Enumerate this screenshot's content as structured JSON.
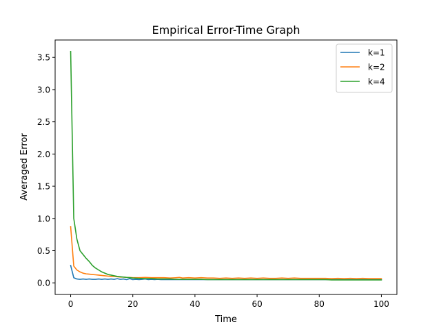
{
  "chart_data": {
    "type": "line",
    "title": "Empirical Error-Time Graph",
    "xlabel": "Time",
    "ylabel": "Averaged Error",
    "xlim": [
      -5,
      105
    ],
    "ylim": [
      -0.18,
      3.77
    ],
    "xticks": [
      0,
      20,
      40,
      60,
      80,
      100
    ],
    "yticks": [
      0.0,
      0.5,
      1.0,
      1.5,
      2.0,
      2.5,
      3.0,
      3.5
    ],
    "grid": false,
    "legend_position": "top-right",
    "series": [
      {
        "name": "k=1",
        "color": "#1f77b4",
        "x": [
          0,
          1,
          2,
          3,
          4,
          5,
          6,
          7,
          8,
          9,
          10,
          11,
          12,
          13,
          14,
          15,
          16,
          17,
          18,
          19,
          20,
          21,
          22,
          23,
          24,
          25,
          26,
          27,
          28,
          29,
          30,
          32,
          34,
          36,
          38,
          40,
          42,
          44,
          46,
          48,
          50,
          52,
          54,
          56,
          58,
          60,
          62,
          64,
          66,
          68,
          70,
          72,
          74,
          76,
          78,
          80,
          82,
          84,
          86,
          88,
          90,
          92,
          94,
          96,
          98,
          100
        ],
        "values": [
          0.27,
          0.08,
          0.06,
          0.055,
          0.06,
          0.055,
          0.06,
          0.055,
          0.055,
          0.06,
          0.055,
          0.06,
          0.055,
          0.06,
          0.055,
          0.065,
          0.055,
          0.06,
          0.05,
          0.065,
          0.05,
          0.055,
          0.05,
          0.055,
          0.06,
          0.05,
          0.055,
          0.05,
          0.055,
          0.05,
          0.05,
          0.05,
          0.05,
          0.05,
          0.05,
          0.05,
          0.05,
          0.05,
          0.05,
          0.05,
          0.05,
          0.05,
          0.05,
          0.05,
          0.05,
          0.05,
          0.05,
          0.05,
          0.05,
          0.05,
          0.05,
          0.05,
          0.05,
          0.05,
          0.05,
          0.05,
          0.05,
          0.05,
          0.05,
          0.05,
          0.05,
          0.05,
          0.05,
          0.05,
          0.05,
          0.05
        ]
      },
      {
        "name": "k=2",
        "color": "#ff7f0e",
        "x": [
          0,
          1,
          2,
          3,
          4,
          5,
          6,
          7,
          8,
          9,
          10,
          11,
          12,
          13,
          14,
          15,
          16,
          17,
          18,
          19,
          20,
          22,
          24,
          26,
          28,
          30,
          32,
          34,
          35,
          36,
          38,
          40,
          42,
          44,
          46,
          48,
          50,
          52,
          54,
          56,
          58,
          60,
          62,
          64,
          66,
          68,
          70,
          72,
          74,
          76,
          78,
          80,
          82,
          84,
          86,
          88,
          90,
          92,
          94,
          96,
          98,
          100
        ],
        "values": [
          0.87,
          0.26,
          0.2,
          0.17,
          0.15,
          0.14,
          0.135,
          0.13,
          0.125,
          0.12,
          0.115,
          0.11,
          0.105,
          0.1,
          0.1,
          0.095,
          0.09,
          0.09,
          0.085,
          0.085,
          0.08,
          0.08,
          0.085,
          0.08,
          0.08,
          0.08,
          0.075,
          0.08,
          0.085,
          0.075,
          0.08,
          0.075,
          0.08,
          0.075,
          0.075,
          0.07,
          0.075,
          0.07,
          0.075,
          0.07,
          0.075,
          0.07,
          0.075,
          0.07,
          0.07,
          0.075,
          0.07,
          0.075,
          0.07,
          0.07,
          0.07,
          0.07,
          0.07,
          0.065,
          0.07,
          0.065,
          0.07,
          0.065,
          0.07,
          0.065,
          0.065,
          0.065
        ]
      },
      {
        "name": "k=4",
        "color": "#2ca02c",
        "x": [
          0,
          1,
          2,
          3,
          4,
          5,
          6,
          7,
          8,
          9,
          10,
          11,
          12,
          13,
          14,
          15,
          16,
          17,
          18,
          19,
          20,
          22,
          24,
          26,
          28,
          30,
          32,
          34,
          36,
          38,
          40,
          42,
          44,
          46,
          48,
          50,
          52,
          54,
          56,
          58,
          60,
          62,
          64,
          66,
          68,
          70,
          72,
          74,
          76,
          78,
          80,
          82,
          84,
          86,
          88,
          90,
          92,
          94,
          96,
          98,
          100
        ],
        "values": [
          3.59,
          1.0,
          0.68,
          0.5,
          0.44,
          0.38,
          0.33,
          0.27,
          0.23,
          0.2,
          0.17,
          0.15,
          0.13,
          0.12,
          0.11,
          0.1,
          0.095,
          0.09,
          0.085,
          0.08,
          0.075,
          0.07,
          0.065,
          0.065,
          0.06,
          0.06,
          0.06,
          0.055,
          0.055,
          0.055,
          0.055,
          0.055,
          0.05,
          0.05,
          0.05,
          0.05,
          0.05,
          0.05,
          0.05,
          0.05,
          0.05,
          0.05,
          0.05,
          0.05,
          0.05,
          0.05,
          0.05,
          0.05,
          0.05,
          0.05,
          0.05,
          0.05,
          0.045,
          0.045,
          0.045,
          0.045,
          0.045,
          0.045,
          0.045,
          0.045,
          0.045
        ]
      }
    ]
  }
}
